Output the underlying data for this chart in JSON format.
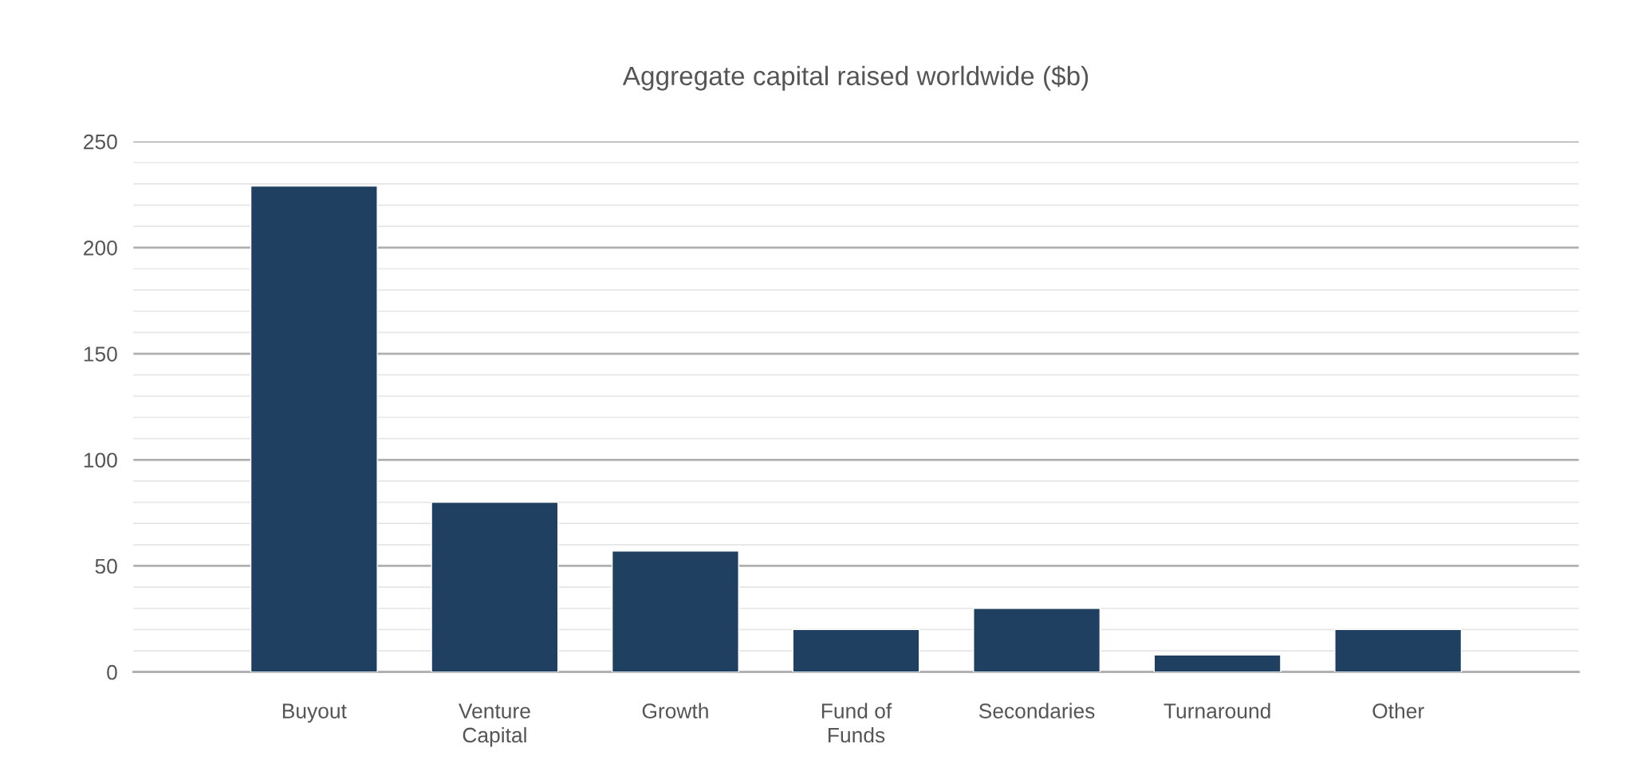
{
  "chart_data": {
    "type": "bar",
    "title": "Aggregate capital raised worldwide ($b)",
    "categories": [
      "Buyout",
      "Venture\nCapital",
      "Growth",
      "Fund of\nFunds",
      "Secondaries",
      "Turnaround",
      "Other"
    ],
    "values": [
      229,
      80,
      57,
      20,
      30,
      8,
      20
    ],
    "color": "#1f4060",
    "ylim": [
      0,
      250
    ],
    "yticks": [
      0,
      {
        "value": 10,
        "label": null
      },
      {
        "value": 20,
        "label": null
      },
      {
        "value": 30,
        "label": null
      },
      {
        "value": 40,
        "label": null
      },
      50,
      {
        "value": 60,
        "label": null
      },
      {
        "value": 70,
        "label": null
      },
      {
        "value": 80,
        "label": null
      },
      {
        "value": 90,
        "label": null
      },
      100,
      {
        "value": 110,
        "label": null
      },
      {
        "value": 120,
        "label": null
      },
      {
        "value": 130,
        "label": null
      },
      {
        "value": 140,
        "label": null
      },
      150,
      {
        "value": 160,
        "label": null
      },
      {
        "value": 170,
        "label": null
      },
      {
        "value": 180,
        "label": null
      },
      {
        "value": 190,
        "label": null
      },
      200,
      {
        "value": 210,
        "label": null
      },
      {
        "value": 220,
        "label": null
      },
      {
        "value": 230,
        "label": null
      },
      {
        "value": 240,
        "label": null
      },
      250
    ],
    "grid": "y"
  }
}
